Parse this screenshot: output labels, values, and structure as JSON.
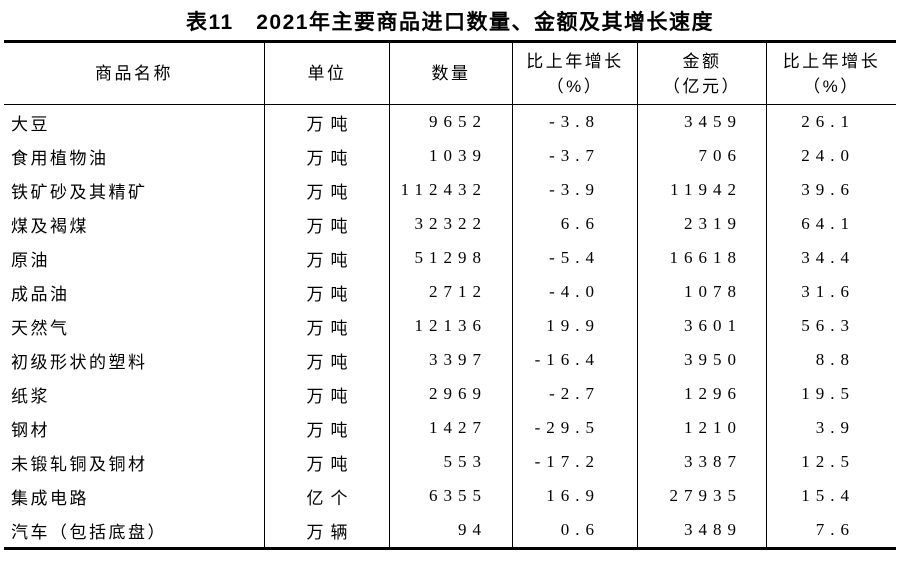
{
  "title": "表11　2021年主要商品进口数量、金额及其增长速度",
  "table": {
    "columns": [
      {
        "line1": "商品名称"
      },
      {
        "line1": "单位"
      },
      {
        "line1": "数量"
      },
      {
        "line1": "比上年增长",
        "line2": "（%）"
      },
      {
        "line1": "金额",
        "line2": "（亿元）"
      },
      {
        "line1": "比上年增长",
        "line2": "（%）"
      }
    ],
    "rows": [
      {
        "name": "大豆",
        "unit": "万吨",
        "quantity": "9652",
        "quantity_growth": "-3.8",
        "amount": "3459",
        "amount_growth": "26.1"
      },
      {
        "name": "食用植物油",
        "unit": "万吨",
        "quantity": "1039",
        "quantity_growth": "-3.7",
        "amount": "706",
        "amount_growth": "24.0"
      },
      {
        "name": "铁矿砂及其精矿",
        "unit": "万吨",
        "quantity": "112432",
        "quantity_growth": "-3.9",
        "amount": "11942",
        "amount_growth": "39.6"
      },
      {
        "name": "煤及褐煤",
        "unit": "万吨",
        "quantity": "32322",
        "quantity_growth": "6.6",
        "amount": "2319",
        "amount_growth": "64.1"
      },
      {
        "name": "原油",
        "unit": "万吨",
        "quantity": "51298",
        "quantity_growth": "-5.4",
        "amount": "16618",
        "amount_growth": "34.4"
      },
      {
        "name": "成品油",
        "unit": "万吨",
        "quantity": "2712",
        "quantity_growth": "-4.0",
        "amount": "1078",
        "amount_growth": "31.6"
      },
      {
        "name": "天然气",
        "unit": "万吨",
        "quantity": "12136",
        "quantity_growth": "19.9",
        "amount": "3601",
        "amount_growth": "56.3"
      },
      {
        "name": "初级形状的塑料",
        "unit": "万吨",
        "quantity": "3397",
        "quantity_growth": "-16.4",
        "amount": "3950",
        "amount_growth": "8.8"
      },
      {
        "name": "纸浆",
        "unit": "万吨",
        "quantity": "2969",
        "quantity_growth": "-2.7",
        "amount": "1296",
        "amount_growth": "19.5"
      },
      {
        "name": "钢材",
        "unit": "万吨",
        "quantity": "1427",
        "quantity_growth": "-29.5",
        "amount": "1210",
        "amount_growth": "3.9"
      },
      {
        "name": "未锻轧铜及铜材",
        "unit": "万吨",
        "quantity": "553",
        "quantity_growth": "-17.2",
        "amount": "3387",
        "amount_growth": "12.5"
      },
      {
        "name": "集成电路",
        "unit": "亿个",
        "quantity": "6355",
        "quantity_growth": "16.9",
        "amount": "27935",
        "amount_growth": "15.4"
      },
      {
        "name": "汽车（包括底盘）",
        "unit": "万辆",
        "quantity": "94",
        "quantity_growth": "0.6",
        "amount": "3489",
        "amount_growth": "7.6"
      }
    ]
  }
}
